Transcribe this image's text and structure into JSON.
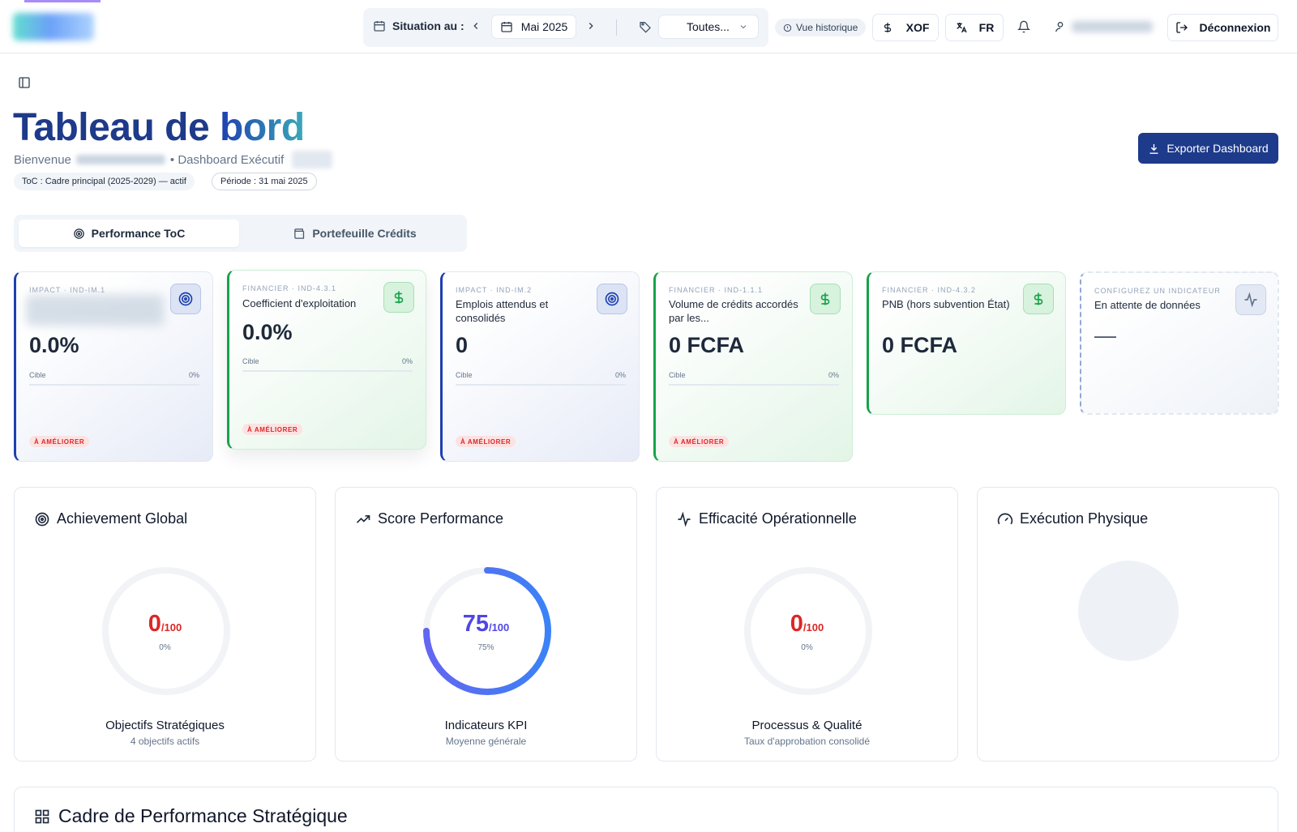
{
  "topbar": {
    "situation_label": "Situation au :",
    "month": "Mai 2025",
    "category_select": "Toutes...",
    "history_pill": "Vue historique",
    "currency": "XOF",
    "language": "FR",
    "logout": "Déconnexion"
  },
  "header": {
    "title_part1": "Tableau de ",
    "title_part2": "bord",
    "welcome": "Bienvenue",
    "dashboard_label": "• Dashboard Exécutif",
    "chip_toc": "ToC : Cadre principal (2025-2029) — actif",
    "chip_period": "Période : 31 mai 2025",
    "export_button": "Exporter Dashboard"
  },
  "tabs": [
    {
      "label": "Performance ToC",
      "icon": "target-icon",
      "active": true
    },
    {
      "label": "Portefeuille Crédits",
      "icon": "wallet-icon",
      "active": false
    }
  ],
  "kpis": [
    {
      "meta": "IMPACT · IND-IM.1",
      "label": "",
      "value": "0.0%",
      "target_label": "Cible",
      "target_value": "0%",
      "status": "À AMÉLIORER",
      "icon": "target-icon",
      "theme": "blue"
    },
    {
      "meta": "FINANCIER · IND-4.3.1",
      "label": "Coefficient d'exploitation",
      "value": "0.0%",
      "target_label": "Cible",
      "target_value": "0%",
      "status": "À AMÉLIORER",
      "icon": "dollar-icon",
      "theme": "green"
    },
    {
      "meta": "IMPACT · IND-IM.2",
      "label": "Emplois attendus et consolidés",
      "value": "0",
      "target_label": "Cible",
      "target_value": "0%",
      "status": "À AMÉLIORER",
      "icon": "target-icon",
      "theme": "blue"
    },
    {
      "meta": "FINANCIER · IND-1.1.1",
      "label": "Volume de crédits accordés par les...",
      "value": "0 FCFA",
      "target_label": "Cible",
      "target_value": "0%",
      "status": "À AMÉLIORER",
      "icon": "dollar-icon",
      "theme": "green"
    },
    {
      "meta": "FINANCIER · IND-4.3.2",
      "label": "PNB (hors subvention État)",
      "value": "0 FCFA",
      "icon": "dollar-icon",
      "theme": "green"
    },
    {
      "meta": "CONFIGUREZ UN INDICATEUR",
      "label": "En attente de données",
      "value": "—",
      "icon": "activity-icon",
      "theme": "dashed"
    }
  ],
  "gauges": [
    {
      "title": "Achievement Global",
      "icon": "target-icon",
      "value": "0",
      "max": "/100",
      "percent": "0%",
      "fraction": 0,
      "color": "#dc2626",
      "footer": "Objectifs Stratégiques",
      "sub": "4 objectifs actifs"
    },
    {
      "title": "Score Performance",
      "icon": "trending-up-icon",
      "value": "75",
      "max": "/100",
      "percent": "75%",
      "fraction": 0.75,
      "color": "#4f46e5",
      "footer": "Indicateurs KPI",
      "sub": "Moyenne générale"
    },
    {
      "title": "Efficacité Opérationnelle",
      "icon": "activity-icon",
      "value": "0",
      "max": "/100",
      "percent": "0%",
      "fraction": 0,
      "color": "#dc2626",
      "footer": "Processus & Qualité",
      "sub": "Taux d'approbation consolidé"
    },
    {
      "title": "Exécution Physique",
      "icon": "gauge-icon"
    }
  ],
  "section": {
    "title": "Cadre de Performance Stratégique"
  }
}
